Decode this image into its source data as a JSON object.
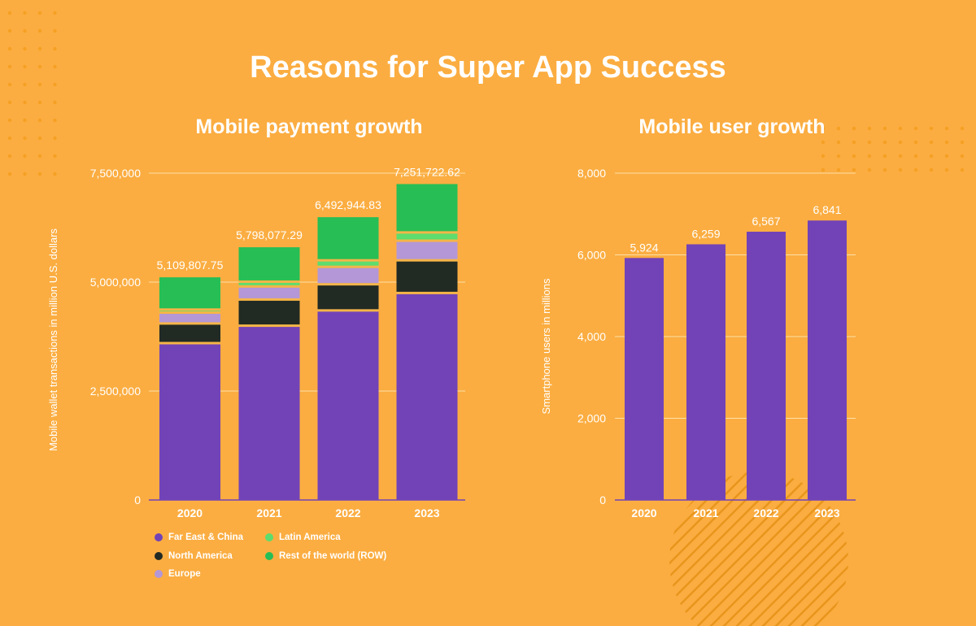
{
  "title": "Reasons for Super App Success",
  "colors": {
    "background": "#FBAD41",
    "far_east": "#7243B7",
    "north_america": "#222A24",
    "europe": "#B497D6",
    "latin_america": "#5EDC6E",
    "row": "#27BE55",
    "separator": "#F4B548",
    "grid": "#FCE0A8",
    "text": "#FFFFFF"
  },
  "chart_data": [
    {
      "type": "bar",
      "stacked": true,
      "title": "Mobile payment growth",
      "xlabel": "",
      "ylabel": "Mobile wallet transactions in million U.S. dollars",
      "categories": [
        "2020",
        "2021",
        "2022",
        "2023"
      ],
      "ylim": [
        0,
        7500000
      ],
      "yticks": [
        0,
        2500000,
        5000000,
        7500000
      ],
      "ytick_labels": [
        "0",
        "2,500,000",
        "5,000,000",
        "7,500,000"
      ],
      "series": [
        {
          "name": "Far East & China",
          "color_key": "far_east",
          "values": [
            3600000,
            4000000,
            4350000,
            4750000
          ]
        },
        {
          "name": "North America",
          "color_key": "north_america",
          "values": [
            450000,
            600000,
            600000,
            750000
          ]
        },
        {
          "name": "Europe",
          "color_key": "europe",
          "values": [
            250000,
            300000,
            400000,
            450000
          ]
        },
        {
          "name": "Latin America",
          "color_key": "latin_america",
          "values": [
            70000,
            110000,
            150000,
            190000
          ]
        },
        {
          "name": "Rest of the world (ROW)",
          "color_key": "row",
          "values": [
            740000,
            790000,
            990000,
            1110000
          ]
        }
      ],
      "total_labels": [
        "5,109,807.75",
        "5,798,077.29",
        "6,492,944.83",
        "7,251,722.62"
      ],
      "legend": {
        "position": "bottom-left",
        "items": [
          "Far East & China",
          "Latin America",
          "North America",
          "Rest of the world (ROW)",
          "Europe"
        ]
      }
    },
    {
      "type": "bar",
      "title": "Mobile user growth",
      "xlabel": "",
      "ylabel": "Smartphone users in millions",
      "categories": [
        "2020",
        "2021",
        "2022",
        "2023"
      ],
      "values": [
        5924,
        6259,
        6567,
        6841
      ],
      "value_labels": [
        "5,924",
        "6,259",
        "6,567",
        "6,841"
      ],
      "ylim": [
        0,
        8000
      ],
      "yticks": [
        0,
        2000,
        4000,
        6000,
        8000
      ],
      "ytick_labels": [
        "0",
        "2,000",
        "4,000",
        "6,000",
        "8,000"
      ]
    }
  ]
}
